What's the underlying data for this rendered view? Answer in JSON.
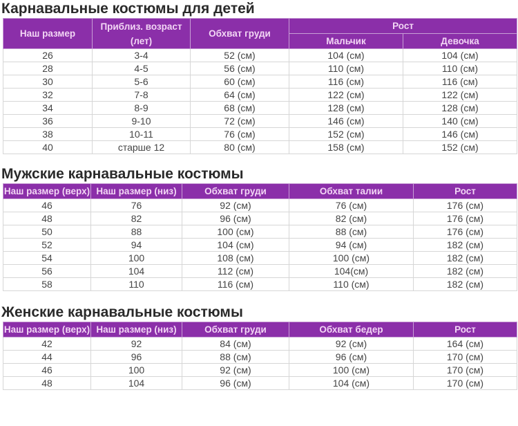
{
  "kids": {
    "title": "Карнавальные костюмы для детей",
    "headers": [
      "Наш размер",
      "Приблиз. возраст (лет)",
      "Обхват груди",
      "Рост",
      "Мальчик",
      "Девочка"
    ],
    "rows": [
      [
        "26",
        "3-4",
        "52 (см)",
        "104 (см)",
        "104 (см)"
      ],
      [
        "28",
        "4-5",
        "56 (см)",
        "110 (см)",
        "110 (см)"
      ],
      [
        "30",
        "5-6",
        "60 (см)",
        "116 (см)",
        "116 (см)"
      ],
      [
        "32",
        "7-8",
        "64 (см)",
        "122 (см)",
        "122 (см)"
      ],
      [
        "34",
        "8-9",
        "68 (см)",
        "128 (см)",
        "128 (см)"
      ],
      [
        "36",
        "9-10",
        "72 (см)",
        "146 (см)",
        "140 (см)"
      ],
      [
        "38",
        "10-11",
        "76 (см)",
        "152 (см)",
        "146 (см)"
      ],
      [
        "40",
        "старше 12",
        "80 (см)",
        "158 (см)",
        "152 (см)"
      ]
    ]
  },
  "men": {
    "title": "Мужские карнавальные костюмы",
    "headers": [
      "Наш размер (верх)",
      "Наш размер (низ)",
      "Обхват груди",
      "Обхват талии",
      "Рост"
    ],
    "rows": [
      [
        "46",
        "76",
        "92 (см)",
        "76 (см)",
        "176 (см)"
      ],
      [
        "48",
        "82",
        "96 (см)",
        "82 (см)",
        "176 (см)"
      ],
      [
        "50",
        "88",
        "100 (см)",
        "88 (см)",
        "176 (см)"
      ],
      [
        "52",
        "94",
        "104 (см)",
        "94 (см)",
        "182 (см)"
      ],
      [
        "54",
        "100",
        "108 (см)",
        "100 (см)",
        "182 (см)"
      ],
      [
        "56",
        "104",
        "112 (см)",
        "104(см)",
        "182 (см)"
      ],
      [
        "58",
        "110",
        "116 (см)",
        "110 (см)",
        "182 (см)"
      ]
    ]
  },
  "women": {
    "title": "Женские карнавальные костюмы",
    "headers": [
      "Наш размер (верх)",
      "Наш размер (низ)",
      "Обхват груди",
      "Обхват бедер",
      "Рост"
    ],
    "rows": [
      [
        "42",
        "92",
        "84 (см)",
        "92 (см)",
        "164 (см)"
      ],
      [
        "44",
        "96",
        "88 (см)",
        "96 (см)",
        "170 (см)"
      ],
      [
        "46",
        "100",
        "92 (см)",
        "100 (см)",
        "170 (см)"
      ],
      [
        "48",
        "104",
        "96 (см)",
        "104 (см)",
        "170 (см)"
      ]
    ]
  },
  "colors": {
    "header_bg": "#8b2fa9",
    "header_text": "#f3d6f5"
  }
}
